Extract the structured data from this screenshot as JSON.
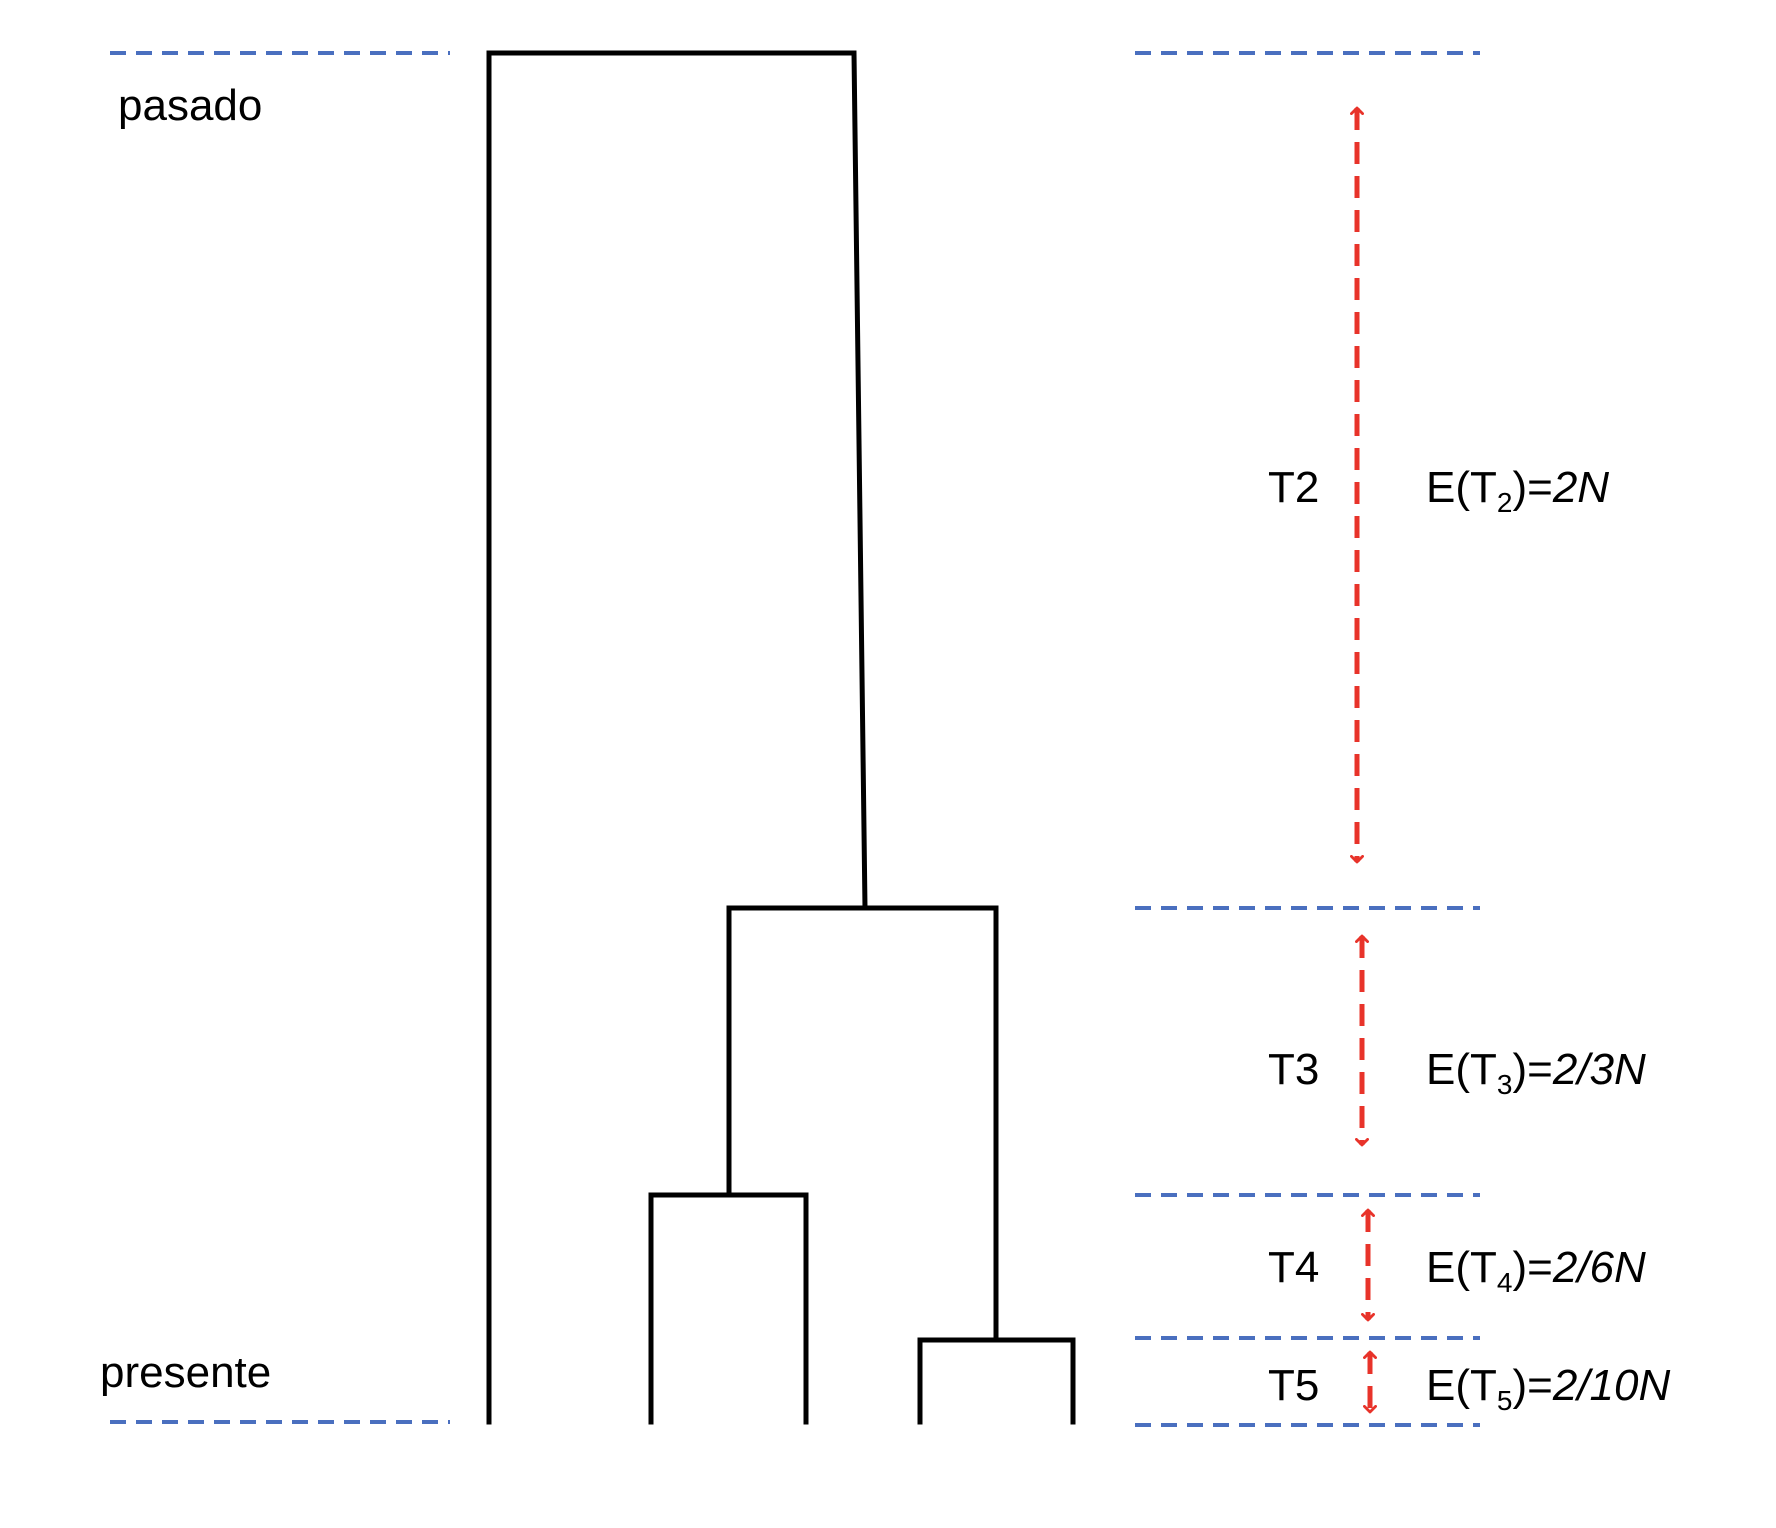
{
  "labels": {
    "past": "pasado",
    "present": "presente"
  },
  "intervals": [
    {
      "name": "T2",
      "expectation": {
        "prefix": "E(T",
        "sub": "2",
        "mid": ")=",
        "value": "2N"
      }
    },
    {
      "name": "T3",
      "expectation": {
        "prefix": "E(T",
        "sub": "3",
        "mid": ")=",
        "value": "2/3N"
      }
    },
    {
      "name": "T4",
      "expectation": {
        "prefix": "E(T",
        "sub": "4",
        "mid": ")=",
        "value": "2/6N"
      }
    },
    {
      "name": "T5",
      "expectation": {
        "prefix": "E(T",
        "sub": "5",
        "mid": ")=",
        "value": "2/10N"
      }
    }
  ],
  "colors": {
    "tree": "#000000",
    "dashed_lines": "#4a6fbf",
    "arrows": "#e8332a",
    "text": "#000000"
  }
}
